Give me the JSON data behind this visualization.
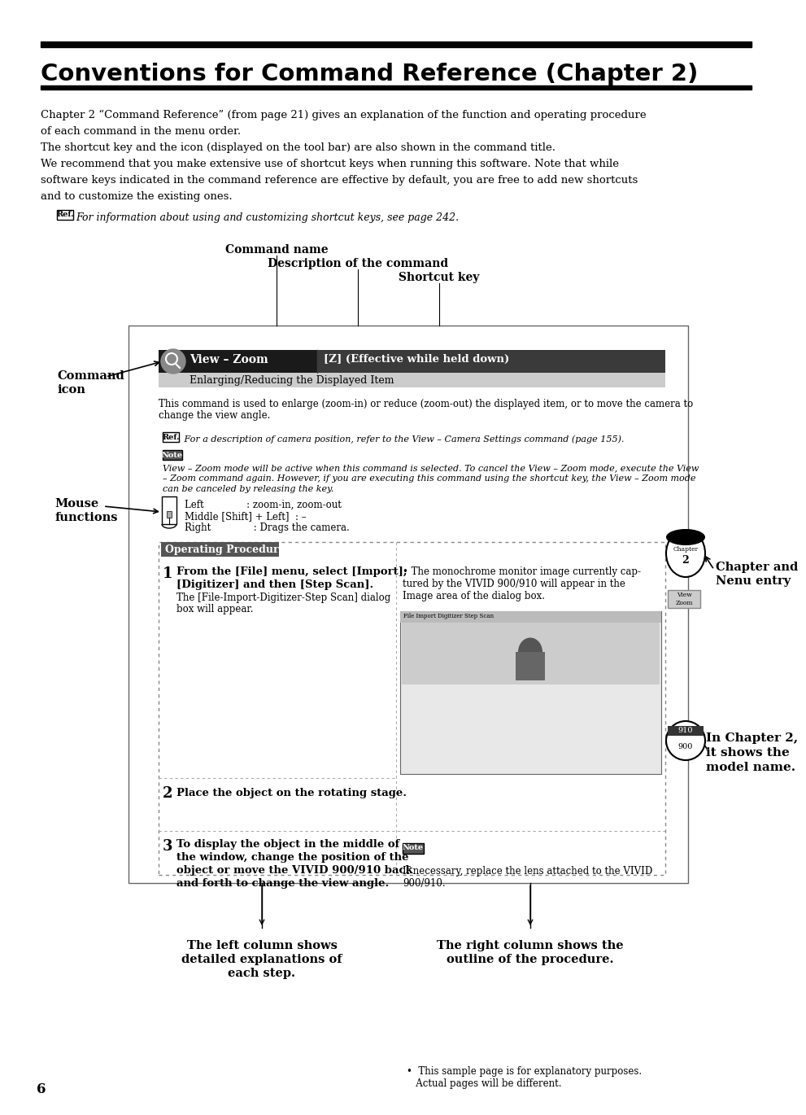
{
  "title": "Conventions for Command Reference (Chapter 2)",
  "bg_color": "#ffffff",
  "body_text": [
    "Chapter 2 “Command Reference” (from page 21) gives an explanation of the function and operating procedure",
    "of each command in the menu order.",
    "The shortcut key and the icon (displayed on the tool bar) are also shown in the command title.",
    "We recommend that you make extensive use of shortcut keys when running this software. Note that while",
    "software keys indicated in the command reference are effective by default, you are free to add new shortcuts",
    "and to customize the existing ones."
  ],
  "ref_text": "For information about using and customizing shortcut keys, see page 242.",
  "cmd_name_label": "Command name",
  "desc_label": "Description of the command",
  "shortcut_label": "Shortcut key",
  "cmd_icon_label1": "Command",
  "cmd_icon_label2": "icon",
  "mouse_label1": "Mouse",
  "mouse_label2": "functions",
  "chapter_label1": "Chapter and",
  "chapter_label2": "Nenu entry",
  "chapter2_label1": "In Chapter 2,",
  "chapter2_label2": "it shows the",
  "chapter2_label3": "model name.",
  "view_zoom": "View – Zoom",
  "shortcut_key": "[Z] (Effective while held down)",
  "sub_title": "Enlarging/Reducing the Displayed Item",
  "desc1": "This command is used to enlarge (zoom-in) or reduce (zoom-out) the displayed item, or to move the camera to",
  "desc2": "change the view angle.",
  "ref2_prefix": "Ref.",
  "ref2_text": " For a description of camera position, refer to the View – Camera Settings command (page 155).",
  "note_label": "Note",
  "note_lines": [
    "View – Zoom mode will be active when this command is selected. To cancel the View – Zoom mode, execute the View",
    "– Zoom command again. However, if you are executing this command using the shortcut key, the View – Zoom mode",
    "can be canceled by releasing the key."
  ],
  "mouse_left": "Left              : zoom-in, zoom-out",
  "mouse_middle": "Middle [Shift] + Left]  : –",
  "mouse_right": "Right              : Drags the camera.",
  "op_proc": "Operating Procedure",
  "step1_bold1": "From the [File] menu, select [Import],",
  "step1_bold2": "[Digitizer] and then [Step Scan].",
  "step1_normal1": "The [File-Import-Digitizer-Step Scan] dialog",
  "step1_normal2": "box will appear.",
  "step1r_lines": [
    "• The monochrome monitor image currently cap-",
    "tured by the VIVID 900/910 will appear in the",
    "Image area of the dialog box."
  ],
  "step2_bold": "Place the object on the rotating stage.",
  "step3_bold1": "To display the object in the middle of",
  "step3_bold2": "the window, change the position of the",
  "step3_bold3": "object or move the VIVID 900/910 back",
  "step3_bold4": "and forth to change the view angle.",
  "step3r_note": "Note",
  "step3r_text1": "If necessary, replace the lens attached to the VIVID",
  "step3r_text2": "900/910.",
  "left_col_label": "The left column shows\ndetailed explanations of\neach step.",
  "right_col_label": "The right column shows the\noutline of the procedure.",
  "footnote1": "•  This sample page is for explanatory purposes.",
  "footnote2": "   Actual pages will be different.",
  "page_number": "6",
  "chapter_tab_text": "Chapter\n2",
  "vivid_tab_text": "View\nZoom",
  "model_tab_text": "910\n900"
}
